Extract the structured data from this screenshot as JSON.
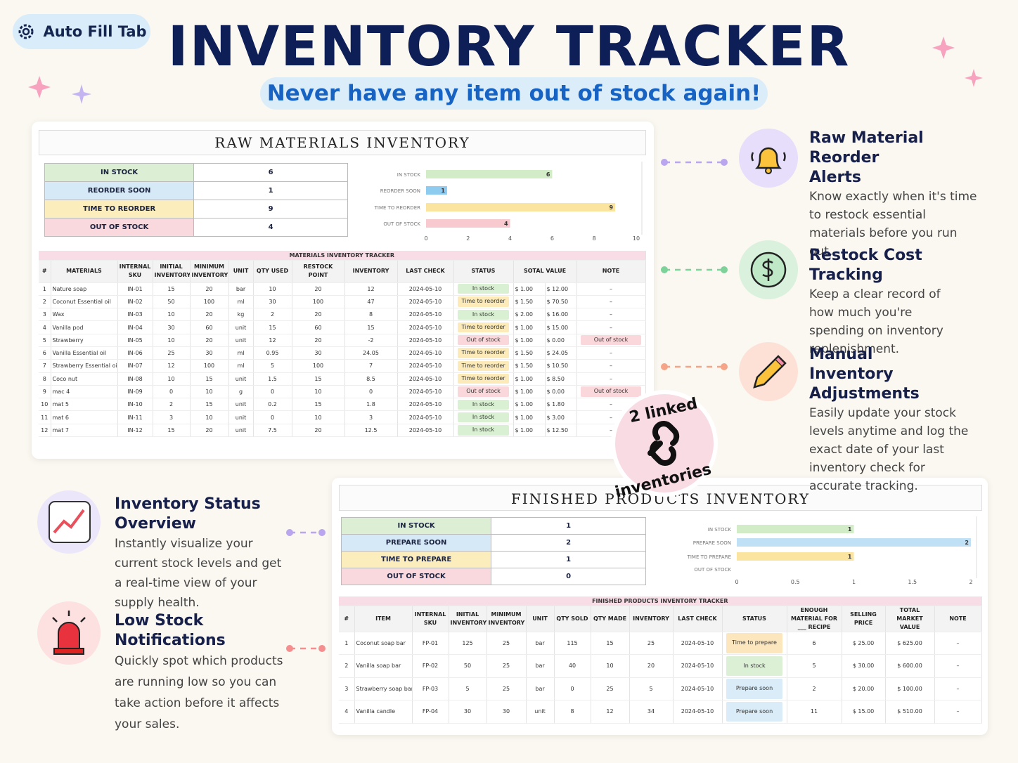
{
  "badge": "Auto Fill Tab",
  "title": "INVENTORY TRACKER",
  "subtitle": "Never have any item out of stock again!",
  "linked_badge": [
    "2 linked",
    "inventories"
  ],
  "raw": {
    "title": "RAW MATERIALS INVENTORY",
    "summary": {
      "labels": [
        "IN STOCK",
        "REORDER SOON",
        "TIME TO REORDER",
        "OUT OF STOCK"
      ],
      "values": [
        6,
        1,
        9,
        4
      ],
      "colors": [
        "#dcefd5",
        "#d6e9f7",
        "#fcedbd",
        "#f9d9dd"
      ]
    },
    "chart": {
      "type": "bar",
      "categories": [
        "IN STOCK",
        "REORDER SOON",
        "TIME TO REORDER",
        "OUT OF STOCK"
      ],
      "values": [
        6,
        1,
        9,
        4
      ],
      "colors": [
        "#d2ecc8",
        "#8fcaf0",
        "#fbe3a0",
        "#f8c9cf"
      ],
      "xlim": [
        0,
        10
      ],
      "xticks": [
        0,
        2,
        4,
        6,
        8,
        10
      ]
    },
    "table": {
      "caption": "MATERIALS INVENTORY TRACKER",
      "headers": [
        "#",
        "MATERIALS",
        "INTERNAL SKU",
        "INITIAL INVENTORY",
        "MINIMUM INVENTORY",
        "UNIT",
        "QTY USED",
        "RESTOCK POINT",
        "INVENTORY",
        "LAST CHECK",
        "STATUS",
        "SOTAL VALUE",
        "NOTE"
      ],
      "status_colors": {
        "In stock": "#d9f1d2",
        "Time to reorder": "#fcebb8",
        "Out of stock": "#f9d7da"
      },
      "rows": [
        [
          "1",
          "Nature soap",
          "IN-01",
          "15",
          "20",
          "bar",
          "10",
          "20",
          "12",
          "2024-05-10",
          "In stock",
          [
            "$  1.00",
            "$  12.00"
          ],
          "–"
        ],
        [
          "2",
          "Coconut Essential oil",
          "IN-02",
          "50",
          "100",
          "ml",
          "30",
          "100",
          "47",
          "2024-05-10",
          "Time to reorder",
          [
            "$  1.50",
            "$  70.50"
          ],
          "–"
        ],
        [
          "3",
          "Wax",
          "IN-03",
          "10",
          "20",
          "kg",
          "2",
          "20",
          "8",
          "2024-05-10",
          "In stock",
          [
            "$  2.00",
            "$  16.00"
          ],
          "–"
        ],
        [
          "4",
          "Vanilla pod",
          "IN-04",
          "30",
          "60",
          "unit",
          "15",
          "60",
          "15",
          "2024-05-10",
          "Time to reorder",
          [
            "$  1.00",
            "$  15.00"
          ],
          "–"
        ],
        [
          "5",
          "Strawberry",
          "IN-05",
          "10",
          "20",
          "unit",
          "12",
          "20",
          "-2",
          "2024-05-10",
          "Out of stock",
          [
            "$  1.00",
            "$  0.00"
          ],
          "Out of stock"
        ],
        [
          "6",
          "Vanilla Essential oil",
          "IN-06",
          "25",
          "30",
          "ml",
          "0.95",
          "30",
          "24.05",
          "2024-05-10",
          "Time to reorder",
          [
            "$  1.50",
            "$  24.05"
          ],
          "–"
        ],
        [
          "7",
          "Strawberry Essential oil",
          "IN-07",
          "12",
          "100",
          "ml",
          "5",
          "100",
          "7",
          "2024-05-10",
          "Time to reorder",
          [
            "$  1.50",
            "$  10.50"
          ],
          "–"
        ],
        [
          "8",
          "Coco nut",
          "IN-08",
          "10",
          "15",
          "unit",
          "1.5",
          "15",
          "8.5",
          "2024-05-10",
          "Time to reorder",
          [
            "$  1.00",
            "$  8.50"
          ],
          "–"
        ],
        [
          "9",
          "mac 4",
          "IN-09",
          "0",
          "10",
          "g",
          "0",
          "10",
          "0",
          "2024-05-10",
          "Out of stock",
          [
            "$  1.00",
            "$  0.00"
          ],
          "Out of stock"
        ],
        [
          "10",
          "mat 5",
          "IN-10",
          "2",
          "15",
          "unit",
          "0.2",
          "15",
          "1.8",
          "2024-05-10",
          "In stock",
          [
            "$  1.00",
            "$  1.80"
          ],
          "–"
        ],
        [
          "11",
          "mat 6",
          "IN-11",
          "3",
          "10",
          "unit",
          "0",
          "10",
          "3",
          "2024-05-10",
          "In stock",
          [
            "$  1.00",
            "$  3.00"
          ],
          "–"
        ],
        [
          "12",
          "mat 7",
          "IN-12",
          "15",
          "20",
          "unit",
          "7.5",
          "20",
          "12.5",
          "2024-05-10",
          "In stock",
          [
            "$  1.00",
            "$  12.50"
          ],
          "–"
        ]
      ]
    }
  },
  "finished": {
    "title": "FINISHED PRODUCTS INVENTORY",
    "summary": {
      "labels": [
        "IN STOCK",
        "PREPARE SOON",
        "TIME TO PREPARE",
        "OUT OF STOCK"
      ],
      "values": [
        1,
        2,
        1,
        0
      ],
      "colors": [
        "#dcefd5",
        "#d6e9f7",
        "#fcedbd",
        "#f9d9dd"
      ]
    },
    "chart": {
      "type": "bar",
      "categories": [
        "IN STOCK",
        "PREPARE SOON",
        "TIME TO PREPARE",
        "OUT OF STOCK"
      ],
      "values": [
        1,
        2,
        1,
        0
      ],
      "colors": [
        "#d2ecc8",
        "#bfe0f5",
        "#fbe3a0",
        "#f8c9cf"
      ],
      "xlim": [
        0,
        2
      ],
      "xticks": [
        0,
        0.5,
        1,
        1.5,
        2
      ]
    },
    "table": {
      "caption": "FINISHED PRODUCTS INVENTORY TRACKER",
      "headers": [
        "#",
        "ITEM",
        "INTERNAL SKU",
        "INITIAL INVENTORY",
        "MINIMUM INVENTORY",
        "UNIT",
        "QTY SOLD",
        "QTY MADE",
        "INVENTORY",
        "LAST CHECK",
        "STATUS",
        "ENOUGH MATERIAL FOR ___ RECIPE",
        "SELLING PRICE",
        "TOTAL MARKET VALUE",
        "NOTE"
      ],
      "status_colors": {
        "Time to prepare": "#fce6bd",
        "In stock": "#dcf0d6",
        "Prepare soon": "#d9ecf8"
      },
      "rows": [
        [
          "1",
          "Coconut soap bar",
          "FP-01",
          "125",
          "25",
          "bar",
          "115",
          "15",
          "25",
          "2024-05-10",
          "Time to prepare",
          "6",
          "$  25.00",
          "$  625.00",
          "–"
        ],
        [
          "2",
          "Vanilla soap bar",
          "FP-02",
          "50",
          "25",
          "bar",
          "40",
          "10",
          "20",
          "2024-05-10",
          "In stock",
          "5",
          "$  30.00",
          "$  600.00",
          "–"
        ],
        [
          "3",
          "Strawberry soap bar",
          "FP-03",
          "5",
          "25",
          "bar",
          "0",
          "25",
          "5",
          "2024-05-10",
          "Prepare soon",
          "2",
          "$  20.00",
          "$  100.00",
          "–"
        ],
        [
          "4",
          "Vanilla candle",
          "FP-04",
          "30",
          "30",
          "unit",
          "8",
          "12",
          "34",
          "2024-05-10",
          "Prepare soon",
          "11",
          "$  15.00",
          "$  510.00",
          "–"
        ]
      ]
    }
  },
  "features": [
    {
      "title": "Raw Material Reorder Alerts",
      "description": "Know exactly when it's time to restock essential materials before you run out."
    },
    {
      "title": "Restock Cost Tracking",
      "description": "Keep a clear record of how much you're spending on inventory replenishment."
    },
    {
      "title": "Manual Inventory Adjustments",
      "description": "Easily update your stock levels anytime and log the exact date of your last inventory check for accurate tracking."
    },
    {
      "title": "Inventory Status Overview",
      "description": "Instantly visualize your current stock levels and get a real-time view of your supply health."
    },
    {
      "title": "Low Stock Notifications",
      "description": "Quickly spot which products are running low so you can take action before it affects your sales."
    }
  ]
}
